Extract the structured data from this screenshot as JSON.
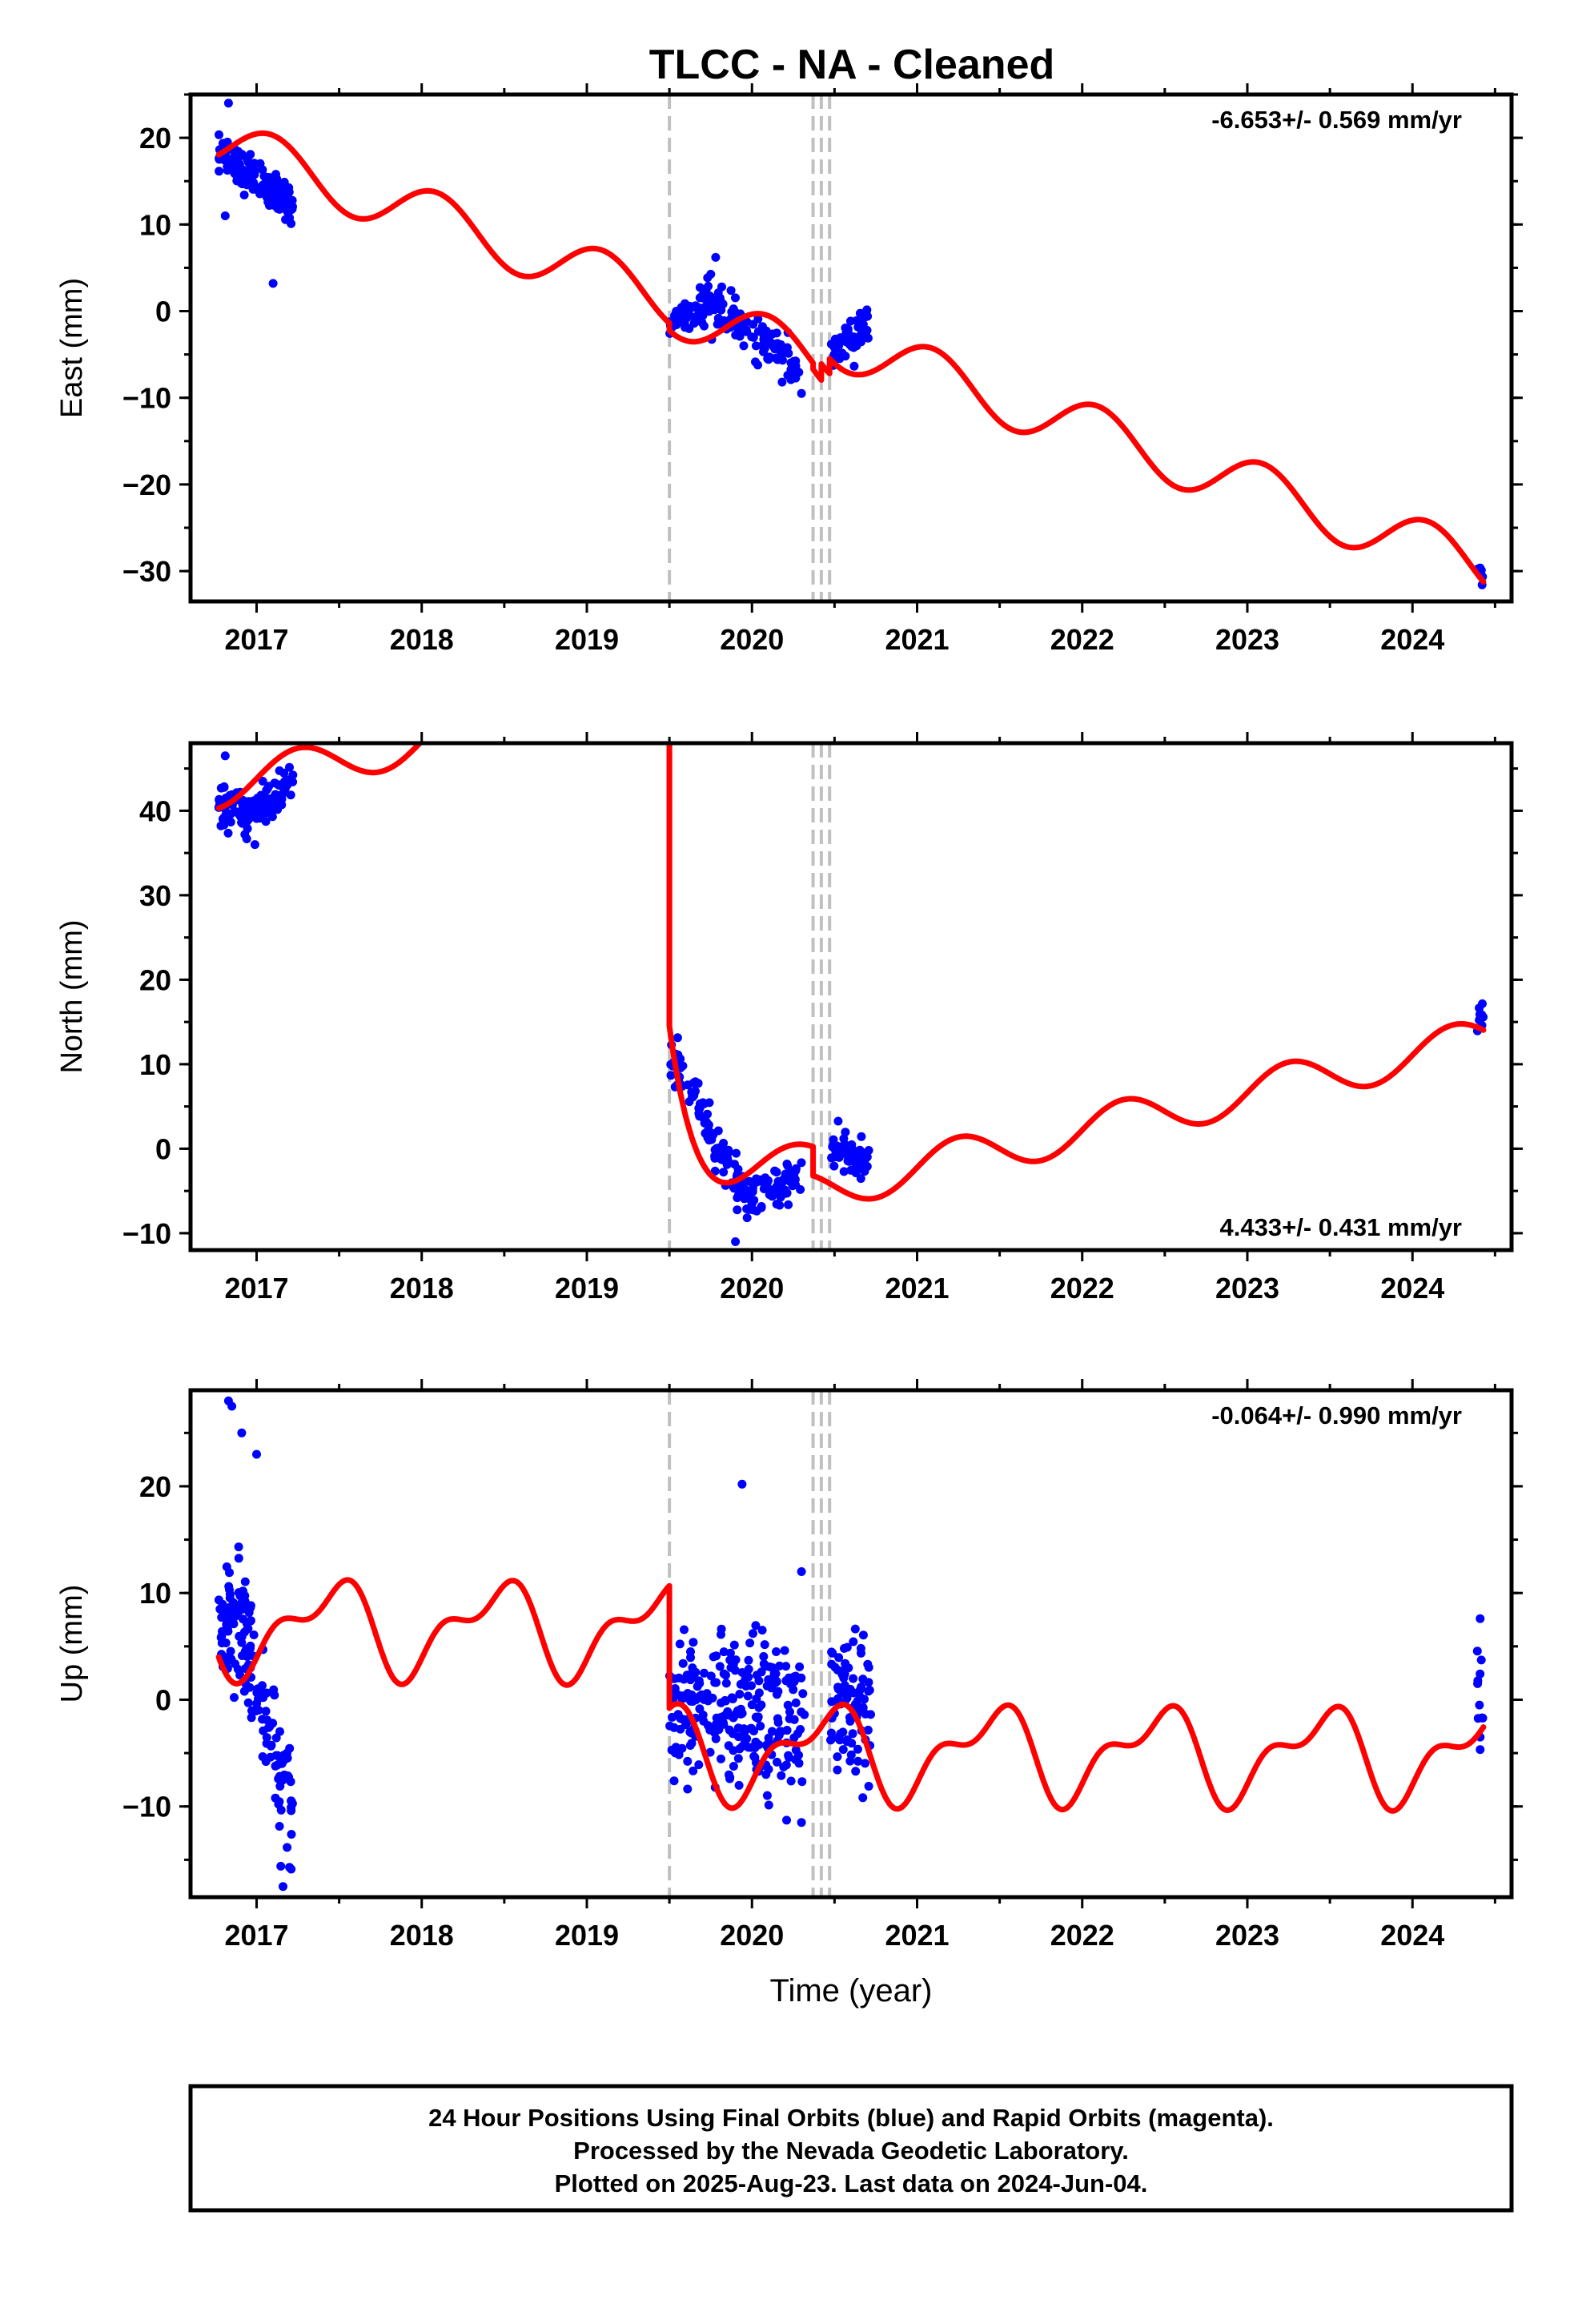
{
  "title": "TLCC  - NA - Cleaned",
  "footer": {
    "lines": [
      "24 Hour Positions Using Final Orbits (blue) and Rapid Orbits (magenta).",
      "Processed by the Nevada Geodetic Laboratory.",
      "Plotted on 2025-Aug-23. Last data on 2024-Jun-04."
    ]
  },
  "colors": {
    "data_points": "#0000ff",
    "model_line": "#ff0000",
    "event_lines": "#c0c0c0"
  },
  "chart_data": [
    {
      "type": "scatter",
      "title": "TLCC  - NA - Cleaned",
      "ylabel": "East (mm)",
      "xlabel": "",
      "rate_label": "-6.653+/- 0.569 mm/yr",
      "rate_position": "top-right",
      "xlim": [
        2016.6,
        2024.6
      ],
      "ylim": [
        -33.5,
        25
      ],
      "xticks": [
        "2017",
        "2018",
        "2019",
        "2020",
        "2021",
        "2022",
        "2023",
        "2024"
      ],
      "yticks": [
        20,
        10,
        0,
        -10,
        -20,
        -30
      ],
      "event_lines": [
        2019.5,
        2020.37,
        2020.42,
        2020.47
      ],
      "series": [
        {
          "kind": "points",
          "clusters": [
            {
              "x_start": 2016.77,
              "x_end": 2017.22,
              "y_start": 18.0,
              "y_end": 12.5,
              "spread": 1.4,
              "count": 140
            },
            {
              "x_start": 2019.5,
              "x_end": 2019.75,
              "y_start": -1.0,
              "y_end": 1.0,
              "spread": 1.3,
              "count": 60
            },
            {
              "x_start": 2019.75,
              "x_end": 2020.3,
              "y_start": 1.0,
              "y_end": -7.0,
              "spread": 1.5,
              "count": 110
            },
            {
              "x_start": 2020.48,
              "x_end": 2020.71,
              "y_start": -5.0,
              "y_end": -1.5,
              "spread": 1.5,
              "count": 60
            },
            {
              "x_start": 2024.39,
              "x_end": 2024.43,
              "y_start": -30.0,
              "y_end": -31.0,
              "spread": 0.8,
              "count": 8
            }
          ],
          "outliers": [
            [
              2016.83,
              24.0
            ],
            [
              2016.81,
              11.0
            ],
            [
              2017.1,
              3.2
            ],
            [
              2019.78,
              6.2
            ],
            [
              2020.3,
              -9.5
            ]
          ]
        },
        {
          "kind": "model",
          "segments": [
            {
              "x_start": 2016.77,
              "x_end": 2019.5,
              "anchor_x": 2016.77,
              "anchor_y": 18.05,
              "rate": -6.653,
              "amp": 3.1,
              "phase": 1.0
            },
            {
              "x_start": 2019.5,
              "x_end": 2020.37,
              "anchor_x": 2019.5,
              "anchor_y": -2.25,
              "rate": -6.653,
              "amp": 3.1,
              "phase": 1.0
            },
            {
              "x_start": 2020.37,
              "x_end": 2020.42,
              "anchor_x": 2020.37,
              "anchor_y": -6.7,
              "rate": -6.653,
              "amp": 3.1,
              "phase": 1.0
            },
            {
              "x_start": 2020.42,
              "x_end": 2020.47,
              "anchor_x": 2020.42,
              "anchor_y": -6.1,
              "rate": -6.653,
              "amp": 3.1,
              "phase": 1.0
            },
            {
              "x_start": 2020.47,
              "x_end": 2024.43,
              "anchor_x": 2020.47,
              "anchor_y": -5.5,
              "rate": -6.653,
              "amp": 3.1,
              "phase": 1.0
            }
          ]
        }
      ]
    },
    {
      "type": "scatter",
      "ylabel": "North (mm)",
      "xlabel": "",
      "rate_label": "4.433+/- 0.431 mm/yr",
      "rate_position": "bottom-right",
      "xlim": [
        2016.6,
        2024.6
      ],
      "ylim": [
        -12,
        48
      ],
      "xticks": [
        "2017",
        "2018",
        "2019",
        "2020",
        "2021",
        "2022",
        "2023",
        "2024"
      ],
      "yticks": [
        40,
        30,
        20,
        10,
        0,
        -10
      ],
      "event_lines": [
        2019.5,
        2020.37,
        2020.42,
        2020.47
      ],
      "series": [
        {
          "kind": "points",
          "clusters": [
            {
              "x_start": 2016.77,
              "x_end": 2016.95,
              "y_start": 40.3,
              "y_end": 39.5,
              "spread": 1.4,
              "count": 60
            },
            {
              "x_start": 2016.95,
              "x_end": 2017.22,
              "y_start": 39.5,
              "y_end": 43.5,
              "spread": 1.6,
              "count": 80
            },
            {
              "x_start": 2019.5,
              "x_end": 2019.97,
              "y_start": 11.0,
              "y_end": -6.0,
              "spread": 1.6,
              "count": 110
            },
            {
              "x_start": 2019.97,
              "x_end": 2020.3,
              "y_start": -6.0,
              "y_end": -3.0,
              "spread": 1.5,
              "count": 70
            },
            {
              "x_start": 2020.48,
              "x_end": 2020.71,
              "y_start": 0.0,
              "y_end": -1.5,
              "spread": 1.4,
              "count": 60
            },
            {
              "x_start": 2024.39,
              "x_end": 2024.43,
              "y_start": 15.0,
              "y_end": 16.0,
              "spread": 0.8,
              "count": 8
            }
          ],
          "outliers": [
            [
              2016.81,
              46.5
            ],
            [
              2016.99,
              36.0
            ],
            [
              2019.9,
              -11.0
            ]
          ]
        },
        {
          "kind": "model",
          "segments": [
            {
              "x_start": 2016.77,
              "x_end": 2019.5,
              "anchor_x": 2016.77,
              "anchor_y": 40.3,
              "rate": 4.433,
              "amp": 2.5,
              "phase": 0.0
            },
            {
              "x_start": 2019.5,
              "x_end": 2020.37,
              "anchor_x": 2019.5,
              "anchor_y": 14.5,
              "rate": 4.433,
              "amp": 2.5,
              "phase": 0.0,
              "decay_amp": 20.0,
              "decay_tau": 0.15
            },
            {
              "x_start": 2020.37,
              "x_end": 2024.43,
              "anchor_x": 2020.37,
              "anchor_y": -3.2,
              "rate": 4.433,
              "amp": 2.5,
              "phase": 0.0
            }
          ],
          "postseismic_spike": {
            "x": 2019.5,
            "y_top": 48,
            "y_bottom": 14.5
          }
        }
      ]
    },
    {
      "type": "scatter",
      "ylabel": "Up (mm)",
      "xlabel": "Time (year)",
      "rate_label": "-0.064+/- 0.990 mm/yr",
      "rate_position": "top-right",
      "xlim": [
        2016.6,
        2024.6
      ],
      "ylim": [
        -18.5,
        29
      ],
      "xticks": [
        "2017",
        "2018",
        "2019",
        "2020",
        "2021",
        "2022",
        "2023",
        "2024"
      ],
      "yticks": [
        20,
        10,
        0,
        -10
      ],
      "event_lines": [
        2019.5,
        2020.37,
        2020.42,
        2020.47
      ],
      "series": [
        {
          "kind": "points",
          "clusters": [
            {
              "x_start": 2016.77,
              "x_end": 2016.97,
              "y_start": 8.0,
              "y_end": 5.0,
              "spread": 4.0,
              "count": 90
            },
            {
              "x_start": 2016.97,
              "x_end": 2017.22,
              "y_start": 2.0,
              "y_end": -10.0,
              "spread": 4.0,
              "count": 70
            },
            {
              "x_start": 2019.5,
              "x_end": 2020.32,
              "y_start": -1.0,
              "y_end": -2.0,
              "spread": 4.5,
              "count": 260
            },
            {
              "x_start": 2020.47,
              "x_end": 2020.72,
              "y_start": 0.0,
              "y_end": -1.0,
              "spread": 4.0,
              "count": 90
            },
            {
              "x_start": 2024.39,
              "x_end": 2024.43,
              "y_start": 1.0,
              "y_end": 1.5,
              "spread": 3.5,
              "count": 10
            }
          ],
          "outliers": [
            [
              2016.83,
              28.0
            ],
            [
              2016.85,
              27.5
            ],
            [
              2016.91,
              25.0
            ],
            [
              2017.0,
              23.0
            ],
            [
              2017.16,
              -17.5
            ],
            [
              2019.94,
              20.2
            ],
            [
              2020.3,
              12.0
            ],
            [
              2020.3,
              -11.5
            ],
            [
              2024.41,
              7.6
            ],
            [
              2024.41,
              -3.5
            ]
          ]
        },
        {
          "kind": "model",
          "segments": [
            {
              "x_start": 2016.77,
              "x_end": 2019.5,
              "anchor_x": 2016.77,
              "anchor_y": 4.0,
              "rate": -0.064,
              "wave": "up"
            },
            {
              "x_start": 2019.5,
              "x_end": 2024.43,
              "anchor_x": 2019.5,
              "anchor_y": -0.8,
              "rate": -0.064,
              "wave": "up"
            }
          ]
        }
      ]
    }
  ]
}
